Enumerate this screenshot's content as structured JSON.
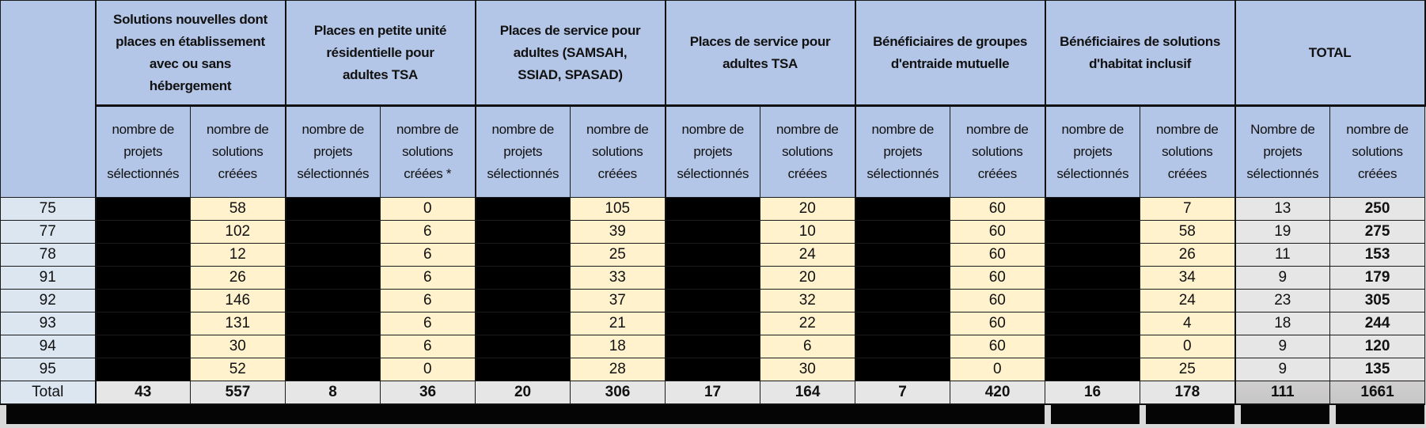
{
  "header": {
    "groups": [
      {
        "title": "Solutions nouvelles dont places en établissement avec ou sans hébergement",
        "lines": [
          "Solutions nouvelles dont",
          "places en établissement",
          "avec ou sans",
          "hébergement"
        ]
      },
      {
        "title": "Places en petite unité résidentielle pour adultes TSA",
        "lines": [
          "Places en petite unité",
          "résidentielle pour",
          "adultes TSA"
        ]
      },
      {
        "title": "Places de service pour adultes (SAMSAH, SSIAD, SPASAD)",
        "lines": [
          "Places de service pour",
          "adultes  (SAMSAH,",
          "SSIAD, SPASAD)"
        ]
      },
      {
        "title": "Places de service pour adultes TSA",
        "lines": [
          "Places de service pour",
          "adultes TSA"
        ]
      },
      {
        "title": "Bénéficiaires de groupes d'entraide mutuelle",
        "lines": [
          "Bénéficiaires de groupes",
          "d'entraide mutuelle"
        ]
      },
      {
        "title": "Bénéficiaires de solutions d'habitat inclusif",
        "lines": [
          "Bénéficiaires de solutions",
          "d'habitat inclusif"
        ]
      },
      {
        "title": "TOTAL",
        "lines": [
          "TOTAL"
        ]
      }
    ],
    "sub_columns": [
      [
        "nombre de",
        "projets",
        "sélectionnés"
      ],
      [
        "nombre de",
        "solutions",
        "créées"
      ],
      [
        "nombre de",
        "projets",
        "sélectionnés"
      ],
      [
        "nombre de",
        "solutions",
        "créées *"
      ],
      [
        "nombre de",
        "projets",
        "sélectionnés"
      ],
      [
        "nombre de",
        "solutions",
        "créées"
      ],
      [
        "nombre de",
        "projets",
        "sélectionnés"
      ],
      [
        "nombre de",
        "solutions",
        "créées"
      ],
      [
        "nombre de",
        "projets",
        "sélectionnés"
      ],
      [
        "nombre de",
        "solutions",
        "créées"
      ],
      [
        "nombre de",
        "projets",
        "sélectionnés"
      ],
      [
        "nombre de",
        "solutions",
        "créées"
      ],
      [
        "Nombre de",
        "projets",
        "sélectionnés"
      ],
      [
        "nombre de",
        "solutions",
        "créées"
      ]
    ]
  },
  "rows": [
    {
      "dept": "75",
      "solutions": [
        "58",
        "0",
        "105",
        "20",
        "60",
        "7"
      ],
      "total_projets": "13",
      "total_solutions": "250"
    },
    {
      "dept": "77",
      "solutions": [
        "102",
        "6",
        "39",
        "10",
        "60",
        "58"
      ],
      "total_projets": "19",
      "total_solutions": "275"
    },
    {
      "dept": "78",
      "solutions": [
        "12",
        "6",
        "25",
        "24",
        "60",
        "26"
      ],
      "total_projets": "11",
      "total_solutions": "153"
    },
    {
      "dept": "91",
      "solutions": [
        "26",
        "6",
        "33",
        "20",
        "60",
        "34"
      ],
      "total_projets": "9",
      "total_solutions": "179"
    },
    {
      "dept": "92",
      "solutions": [
        "146",
        "6",
        "37",
        "32",
        "60",
        "24"
      ],
      "total_projets": "23",
      "total_solutions": "305"
    },
    {
      "dept": "93",
      "solutions": [
        "131",
        "6",
        "21",
        "22",
        "60",
        "4"
      ],
      "total_projets": "18",
      "total_solutions": "244"
    },
    {
      "dept": "94",
      "solutions": [
        "30",
        "6",
        "18",
        "6",
        "60",
        "0"
      ],
      "total_projets": "9",
      "total_solutions": "120"
    },
    {
      "dept": "95",
      "solutions": [
        "52",
        "0",
        "28",
        "30",
        "0",
        "25"
      ],
      "total_projets": "9",
      "total_solutions": "135"
    }
  ],
  "total_row": {
    "label": "Total",
    "values": [
      "43",
      "557",
      "8",
      "36",
      "20",
      "306",
      "17",
      "164",
      "7",
      "420",
      "16",
      "178",
      "111",
      "1661"
    ]
  },
  "colors": {
    "header_bg": "#B4C6E7",
    "row_label_bg": "#DCE6F1",
    "value_bg": "#FFF2CC",
    "redacted_bg": "#000000",
    "total_bg": "#E7E6E6",
    "grand_total_bg": "#D0CECE"
  }
}
